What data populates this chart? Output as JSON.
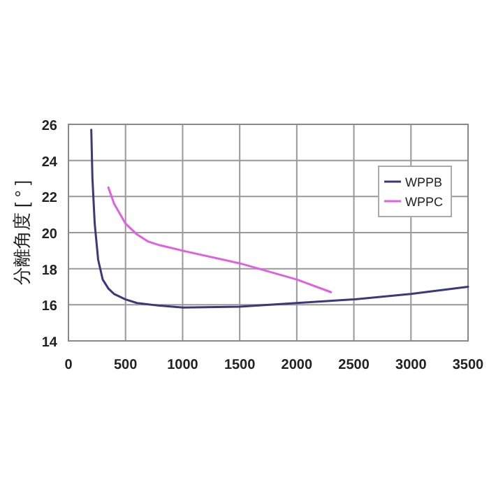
{
  "chart_data": {
    "type": "line",
    "ylabel": "分離角度 [ ° ]",
    "xlim": [
      0,
      3500
    ],
    "ylim": [
      14,
      26
    ],
    "xticks": [
      0,
      500,
      1000,
      1500,
      2000,
      2500,
      3000,
      3500
    ],
    "yticks": [
      14,
      16,
      18,
      20,
      22,
      24,
      26
    ],
    "grid": true,
    "legend": "top right",
    "series": [
      {
        "name": "WPPB",
        "color": "#3a3a7a",
        "x": [
          200,
          210,
          230,
          260,
          300,
          350,
          400,
          500,
          600,
          800,
          1000,
          1500,
          2000,
          2500,
          3000,
          3500
        ],
        "values": [
          25.7,
          23,
          20.5,
          18.5,
          17.4,
          16.9,
          16.6,
          16.3,
          16.1,
          15.95,
          15.85,
          15.9,
          16.1,
          16.3,
          16.6,
          17.0
        ]
      },
      {
        "name": "WPPC",
        "color": "#e060e0",
        "x": [
          350,
          400,
          500,
          600,
          700,
          800,
          1000,
          1500,
          2000,
          2300
        ],
        "values": [
          22.5,
          21.6,
          20.5,
          19.9,
          19.5,
          19.3,
          19.0,
          18.3,
          17.4,
          16.7
        ]
      }
    ]
  }
}
